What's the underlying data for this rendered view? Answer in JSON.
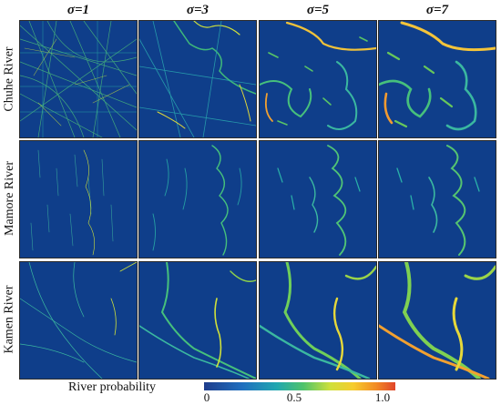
{
  "figure": {
    "columns": [
      "σ=1",
      "σ=3",
      "σ=5",
      "σ=7"
    ],
    "rows": [
      "Chuhe River",
      "Mamore River",
      "Kamen River"
    ],
    "colorbar": {
      "label": "River probability",
      "ticks": [
        "0",
        "0.5",
        "1.0"
      ],
      "colors": [
        "#1f3d8c",
        "#1f6fbf",
        "#20a7b0",
        "#4fc36b",
        "#cfe03b",
        "#f6cc2e",
        "#f28a24",
        "#e0452b"
      ]
    },
    "panel_background": "#0f3e8a"
  }
}
